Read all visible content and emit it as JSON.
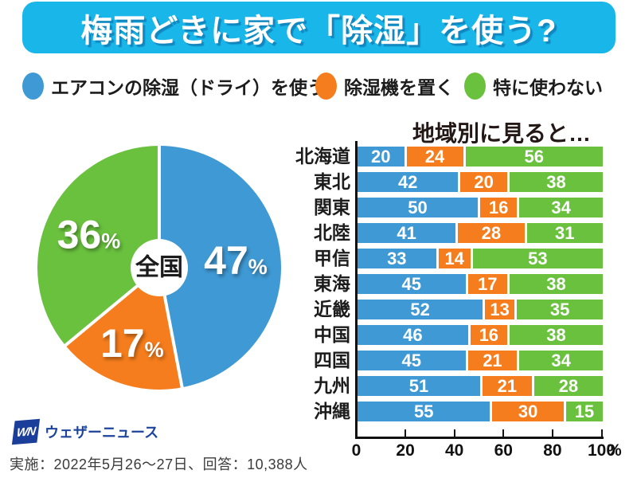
{
  "page_title": "梅雨どきに家で「除湿」を使う?",
  "colors": {
    "banner_cyan": "#18b6e9",
    "aircon_blue": "#3f99d4",
    "dehumidifier_orange": "#f57d1d",
    "none_green": "#69c13e",
    "logo_navy": "#1b3e9b",
    "axis_black": "#111111"
  },
  "legend": {
    "items": [
      {
        "label": "エアコンの除湿（ドライ）を使う",
        "color": "#3f99d4"
      },
      {
        "label": "除湿機を置く",
        "color": "#f57d1d"
      },
      {
        "label": "特に使わない",
        "color": "#69c13e"
      }
    ]
  },
  "chart_data": [
    {
      "type": "pie",
      "center_label": "全国",
      "unit": "%",
      "direction": "clockwise",
      "start_angle_deg": 0,
      "slices": [
        {
          "label": "エアコンの除湿（ドライ）を使う",
          "value": 47,
          "color": "#3f99d4"
        },
        {
          "label": "除湿機を置く",
          "value": 17,
          "color": "#f57d1d"
        },
        {
          "label": "特に使わない",
          "value": 36,
          "color": "#69c13e"
        }
      ]
    },
    {
      "type": "bar",
      "variant": "stacked-horizontal",
      "title": "地域別に見ると…",
      "categories": [
        "北海道",
        "東北",
        "関東",
        "北陸",
        "甲信",
        "東海",
        "近畿",
        "中国",
        "四国",
        "九州",
        "沖縄"
      ],
      "series": [
        {
          "name": "エアコンの除湿（ドライ）を使う",
          "color": "#3f99d4",
          "values": [
            20,
            42,
            50,
            41,
            33,
            45,
            52,
            46,
            45,
            51,
            55
          ]
        },
        {
          "name": "除湿機を置く",
          "color": "#f57d1d",
          "values": [
            24,
            20,
            16,
            28,
            14,
            17,
            13,
            16,
            21,
            21,
            30
          ]
        },
        {
          "name": "特に使わない",
          "color": "#69c13e",
          "values": [
            56,
            38,
            34,
            31,
            53,
            38,
            35,
            38,
            34,
            28,
            15
          ]
        }
      ],
      "x_ticks": [
        0,
        20,
        40,
        60,
        80,
        100
      ],
      "x_unit": "%",
      "xlim": [
        0,
        100
      ],
      "legend_position": "top",
      "grid": false
    }
  ],
  "footer": {
    "logo_mark": "WN",
    "logo_text": "ウェザーニュース",
    "note": "実施：2022年5月26～27日、回答：10,388人"
  }
}
